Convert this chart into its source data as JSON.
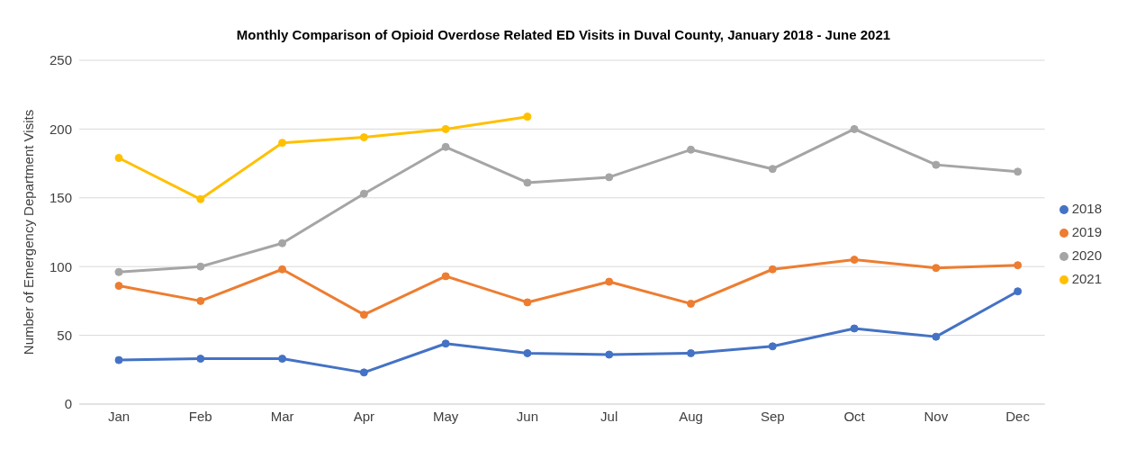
{
  "chart_data": {
    "type": "line",
    "title": "Monthly Comparison of Opioid Overdose Related ED Visits in Duval County, January 2018 - June 2021",
    "ylabel": "Number of Emergency Department Visits",
    "categories": [
      "Jan",
      "Feb",
      "Mar",
      "Apr",
      "May",
      "Jun",
      "Jul",
      "Aug",
      "Sep",
      "Oct",
      "Nov",
      "Dec"
    ],
    "series": [
      {
        "name": "2018",
        "color": "#4472c4",
        "values": [
          32,
          33,
          33,
          23,
          44,
          37,
          36,
          37,
          42,
          55,
          49,
          82
        ]
      },
      {
        "name": "2019",
        "color": "#ed7d31",
        "values": [
          86,
          75,
          98,
          65,
          93,
          74,
          89,
          73,
          98,
          105,
          99,
          101
        ]
      },
      {
        "name": "2020",
        "color": "#a5a5a5",
        "values": [
          96,
          100,
          117,
          153,
          187,
          161,
          165,
          185,
          171,
          200,
          174,
          169
        ]
      },
      {
        "name": "2021",
        "color": "#ffc000",
        "values": [
          179,
          149,
          190,
          194,
          200,
          209,
          null,
          null,
          null,
          null,
          null,
          null
        ]
      }
    ],
    "ylim": [
      0,
      250
    ],
    "yticks": [
      0,
      50,
      100,
      150,
      200,
      250
    ],
    "grid": "y",
    "legend": "right",
    "marker": "circle",
    "line_style": "solid"
  }
}
